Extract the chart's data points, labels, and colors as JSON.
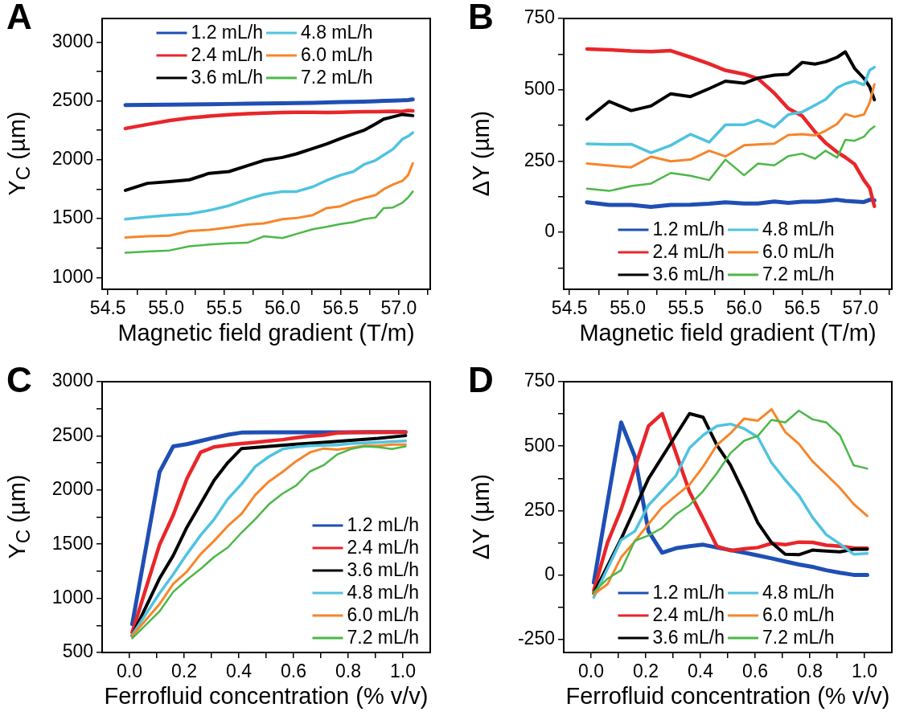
{
  "chart_data": [
    {
      "type": "line",
      "title": "A",
      "xlabel": "Magnetic field gradient (T/m)",
      "ylabel": "Y$_{C}$ (µm)",
      "legend": "top",
      "grid": false,
      "marker": "none",
      "line_style": "solid",
      "xlim": [
        54.45,
        57.27
      ],
      "xticks": [
        54.5,
        {
          "value": 54.75,
          "label": null
        },
        {
          "value": 55,
          "label": "55.0"
        },
        {
          "value": 55.25,
          "label": null
        },
        55.5,
        {
          "value": 55.75,
          "label": null
        },
        {
          "value": 56,
          "label": "56.0"
        },
        {
          "value": 56.25,
          "label": null
        },
        56.5,
        {
          "value": 56.75,
          "label": null
        },
        {
          "value": 57,
          "label": "57.0"
        },
        {
          "value": 57.25,
          "label": null
        }
      ],
      "ylim": [
        900,
        3200
      ],
      "yticks": [
        1000,
        {
          "value": 1250,
          "label": null
        },
        1500,
        {
          "value": 1750,
          "label": null
        },
        2000,
        {
          "value": 2250,
          "label": null
        },
        2500,
        {
          "value": 2750,
          "label": null
        },
        3000
      ],
      "x": [
        54.65,
        54.84,
        55.03,
        55.2,
        55.37,
        55.54,
        55.7,
        55.84,
        56.0,
        56.12,
        56.26,
        56.38,
        56.5,
        56.61,
        56.7,
        56.8,
        56.87,
        56.95,
        57.03,
        57.08,
        57.12
      ],
      "series": [
        {
          "name": "1.2 mL/h",
          "color": "#1f4fb4",
          "values": [
            2465,
            2467,
            2468,
            2470,
            2472,
            2474,
            2476,
            2478,
            2480,
            2482,
            2484,
            2487,
            2490,
            2492,
            2494,
            2497,
            2500,
            2502,
            2505,
            2508,
            2512
          ]
        },
        {
          "name": "2.4 mL/h",
          "color": "#e8262a",
          "values": [
            2266,
            2300,
            2333,
            2356,
            2370,
            2383,
            2392,
            2397,
            2401,
            2403,
            2403,
            2401,
            2403,
            2406,
            2408,
            2408,
            2410,
            2412,
            2410,
            2419,
            2415
          ]
        },
        {
          "name": "3.6 mL/h",
          "color": "#000000",
          "values": [
            1740,
            1800,
            1815,
            1830,
            1885,
            1900,
            1950,
            1995,
            2020,
            2050,
            2095,
            2135,
            2180,
            2220,
            2250,
            2305,
            2345,
            2365,
            2385,
            2380,
            2375
          ]
        },
        {
          "name": "4.8 mL/h",
          "color": "#4fc3e0",
          "values": [
            1495,
            1515,
            1530,
            1540,
            1570,
            1610,
            1665,
            1705,
            1730,
            1730,
            1770,
            1825,
            1870,
            1900,
            1960,
            1995,
            2040,
            2090,
            2175,
            2200,
            2230
          ]
        },
        {
          "name": "6.0 mL/h",
          "color": "#f7852a",
          "values": [
            1340,
            1350,
            1355,
            1395,
            1405,
            1425,
            1450,
            1460,
            1495,
            1505,
            1530,
            1590,
            1605,
            1650,
            1675,
            1700,
            1750,
            1790,
            1820,
            1870,
            1970
          ]
        },
        {
          "name": "7.2 mL/h",
          "color": "#4cb848",
          "values": [
            1210,
            1220,
            1230,
            1265,
            1280,
            1290,
            1295,
            1350,
            1335,
            1370,
            1410,
            1430,
            1455,
            1470,
            1495,
            1510,
            1590,
            1595,
            1635,
            1680,
            1730
          ]
        }
      ]
    },
    {
      "type": "line",
      "title": "B",
      "xlabel": "Magnetic field gradient (T/m)",
      "ylabel": "ΔY (µm)",
      "legend": "bottom",
      "grid": false,
      "marker": "none",
      "line_style": "solid",
      "xlim": [
        54.45,
        57.27
      ],
      "xticks": [
        54.5,
        {
          "value": 54.75,
          "label": null
        },
        {
          "value": 55,
          "label": "55.0"
        },
        {
          "value": 55.25,
          "label": null
        },
        55.5,
        {
          "value": 55.75,
          "label": null
        },
        {
          "value": 56,
          "label": "56.0"
        },
        {
          "value": 56.25,
          "label": null
        },
        56.5,
        {
          "value": 56.75,
          "label": null
        },
        {
          "value": 57,
          "label": "57.0"
        },
        {
          "value": 57.25,
          "label": null
        }
      ],
      "ylim": [
        -200,
        750
      ],
      "yticks": [
        {
          "value": -125,
          "label": null
        },
        0,
        {
          "value": 125,
          "label": null
        },
        250,
        {
          "value": 375,
          "label": null
        },
        500,
        {
          "value": 625,
          "label": null
        },
        750
      ],
      "x": [
        54.65,
        54.84,
        55.03,
        55.2,
        55.37,
        55.54,
        55.7,
        55.84,
        56.0,
        56.12,
        56.26,
        56.38,
        56.5,
        56.61,
        56.7,
        56.8,
        56.87,
        56.95,
        57.03,
        57.08,
        57.12
      ],
      "series": [
        {
          "name": "1.2 mL/h",
          "color": "#1f4fb4",
          "values": [
            105,
            96,
            96,
            89,
            96,
            97,
            100,
            105,
            101,
            101,
            108,
            103,
            107,
            107,
            110,
            114,
            110,
            108,
            106,
            114,
            112
          ]
        },
        {
          "name": "2.4 mL/h",
          "color": "#e8262a",
          "values": [
            643,
            640,
            636,
            634,
            637,
            614,
            591,
            568,
            555,
            539,
            488,
            434,
            408,
            352,
            314,
            281,
            263,
            239,
            183,
            155,
            91
          ]
        },
        {
          "name": "3.6 mL/h",
          "color": "#000000",
          "values": [
            397,
            459,
            427,
            443,
            486,
            476,
            504,
            530,
            523,
            541,
            551,
            554,
            596,
            590,
            598,
            614,
            633,
            575,
            540,
            510,
            465
          ]
        },
        {
          "name": "4.8 mL/h",
          "color": "#4fc3e0",
          "values": [
            310,
            308,
            309,
            279,
            305,
            344,
            316,
            377,
            377,
            394,
            369,
            413,
            422,
            446,
            466,
            507,
            521,
            530,
            517,
            569,
            579
          ]
        },
        {
          "name": "6.0 mL/h",
          "color": "#f7852a",
          "values": [
            241,
            234,
            228,
            265,
            249,
            255,
            286,
            266,
            305,
            308,
            311,
            341,
            344,
            340,
            356,
            380,
            415,
            405,
            413,
            455,
            519
          ]
        },
        {
          "name": "7.2 mL/h",
          "color": "#4cb848",
          "values": [
            153,
            145,
            162,
            171,
            208,
            198,
            183,
            255,
            200,
            241,
            235,
            267,
            276,
            258,
            286,
            262,
            324,
            321,
            335,
            359,
            371
          ]
        }
      ]
    },
    {
      "type": "line",
      "title": "C",
      "xlabel": "Ferrofluid concentration (% v/v)",
      "ylabel": "Y$_{C}$ (µm)",
      "legend": "bottom right",
      "grid": false,
      "marker": "none",
      "line_style": "solid",
      "xlim": [
        -0.1,
        1.1
      ],
      "xticks": [
        {
          "value": 0,
          "label": "0.0"
        },
        {
          "value": 0.1,
          "label": null
        },
        0.2,
        {
          "value": 0.3,
          "label": null
        },
        0.4,
        {
          "value": 0.5,
          "label": null
        },
        0.6,
        {
          "value": 0.7,
          "label": null
        },
        0.8,
        {
          "value": 0.9,
          "label": null
        },
        {
          "value": 1,
          "label": "1.0"
        }
      ],
      "ylim": [
        500,
        3000
      ],
      "yticks": [
        500,
        {
          "value": 750,
          "label": null
        },
        1000,
        {
          "value": 1250,
          "label": null
        },
        1500,
        {
          "value": 1750,
          "label": null
        },
        2000,
        {
          "value": 2250,
          "label": null
        },
        2500,
        {
          "value": 2750,
          "label": null
        },
        3000
      ],
      "series": [
        {
          "name": "1.2 mL/h",
          "color": "#1f4fb4",
          "x": [
            0.01,
            0.11,
            0.16,
            0.21,
            0.26,
            0.31,
            0.36,
            0.41,
            0.51,
            0.61,
            0.71,
            0.81,
            0.91,
            1.01
          ],
          "values": [
            761,
            2166,
            2403,
            2423,
            2453,
            2483,
            2510,
            2530,
            2532,
            2532,
            2532,
            2532,
            2534,
            2535
          ]
        },
        {
          "name": "2.4 mL/h",
          "color": "#e8262a",
          "x": [
            0.01,
            0.11,
            0.16,
            0.21,
            0.26,
            0.31,
            0.36,
            0.41,
            0.46,
            0.51,
            0.56,
            0.61,
            0.66,
            0.71,
            0.76,
            0.81,
            1.01
          ],
          "values": [
            686,
            1495,
            1769,
            2104,
            2348,
            2398,
            2415,
            2428,
            2440,
            2453,
            2465,
            2483,
            2497,
            2507,
            2527,
            2532,
            2535
          ]
        },
        {
          "name": "3.6 mL/h",
          "color": "#000000",
          "x": [
            0.01,
            0.11,
            0.16,
            0.21,
            0.26,
            0.31,
            0.36,
            0.41,
            0.51,
            0.61,
            0.71,
            0.81,
            0.91,
            1.01
          ],
          "values": [
            656,
            1184,
            1395,
            1656,
            1873,
            2092,
            2254,
            2383,
            2403,
            2423,
            2440,
            2458,
            2477,
            2502
          ]
        },
        {
          "name": "4.8 mL/h",
          "color": "#4fc3e0",
          "x": [
            0.01,
            0.11,
            0.16,
            0.21,
            0.26,
            0.31,
            0.36,
            0.41,
            0.46,
            0.51,
            0.56,
            0.61,
            0.66,
            0.71,
            0.76,
            0.81,
            0.86,
            0.91,
            0.96,
            1.01
          ],
          "values": [
            661,
            1047,
            1221,
            1408,
            1582,
            1731,
            1918,
            2055,
            2216,
            2308,
            2378,
            2398,
            2408,
            2413,
            2415,
            2428,
            2435,
            2440,
            2448,
            2453
          ]
        },
        {
          "name": "6.0 mL/h",
          "color": "#f7852a",
          "x": [
            0.01,
            0.11,
            0.16,
            0.21,
            0.26,
            0.31,
            0.36,
            0.41,
            0.46,
            0.51,
            0.56,
            0.61,
            0.66,
            0.71,
            0.76,
            0.81,
            0.86,
            0.91,
            0.96,
            1.01
          ],
          "values": [
            654,
            947,
            1134,
            1246,
            1408,
            1532,
            1669,
            1781,
            1955,
            2079,
            2167,
            2266,
            2348,
            2383,
            2373,
            2390,
            2408,
            2408,
            2420,
            2420
          ]
        },
        {
          "name": "7.2 mL/h",
          "color": "#4cb848",
          "x": [
            0.01,
            0.11,
            0.16,
            0.21,
            0.26,
            0.31,
            0.36,
            0.41,
            0.46,
            0.51,
            0.56,
            0.61,
            0.66,
            0.71,
            0.76,
            0.81,
            0.86,
            0.91,
            0.96,
            1.01
          ],
          "values": [
            631,
            880,
            1059,
            1171,
            1271,
            1383,
            1470,
            1607,
            1731,
            1868,
            1967,
            2042,
            2171,
            2229,
            2328,
            2378,
            2403,
            2395,
            2378,
            2403
          ]
        }
      ]
    },
    {
      "type": "line",
      "title": "D",
      "xlabel": "Ferrofluid concentration (% v/v)",
      "ylabel": "ΔY (µm)",
      "legend": "bottom",
      "grid": false,
      "marker": "none",
      "line_style": "solid",
      "xlim": [
        -0.1,
        1.1
      ],
      "xticks": [
        {
          "value": 0,
          "label": "0.0"
        },
        {
          "value": 0.1,
          "label": null
        },
        0.2,
        {
          "value": 0.3,
          "label": null
        },
        0.4,
        {
          "value": 0.5,
          "label": null
        },
        0.6,
        {
          "value": 0.7,
          "label": null
        },
        0.8,
        {
          "value": 0.9,
          "label": null
        },
        {
          "value": 1,
          "label": "1.0"
        }
      ],
      "ylim": [
        -300,
        750
      ],
      "yticks": [
        -250,
        {
          "value": -125,
          "label": null
        },
        0,
        {
          "value": 125,
          "label": null
        },
        250,
        {
          "value": 375,
          "label": null
        },
        500,
        {
          "value": 625,
          "label": null
        },
        750
      ],
      "series": [
        {
          "name": "1.2 mL/h",
          "color": "#1f4fb4",
          "x": [
            0.01,
            0.11,
            0.16,
            0.21,
            0.26,
            0.31,
            0.36,
            0.41,
            0.46,
            0.51,
            0.56,
            0.61,
            0.66,
            0.71,
            0.76,
            0.81,
            0.86,
            0.91,
            0.96,
            1.01
          ],
          "values": [
            -29,
            592,
            460,
            170,
            87,
            104,
            112,
            118,
            107,
            97,
            87,
            76,
            65,
            53,
            41,
            32,
            19,
            9,
            1,
            1
          ]
        },
        {
          "name": "2.4 mL/h",
          "color": "#e8262a",
          "x": [
            0.01,
            0.06,
            0.11,
            0.16,
            0.21,
            0.26,
            0.36,
            0.41,
            0.46,
            0.51,
            0.56,
            0.61,
            0.66,
            0.71,
            0.76,
            0.81,
            0.86,
            0.91,
            0.96,
            1.01
          ],
          "values": [
            -60,
            126,
            255,
            416,
            578,
            626,
            323,
            219,
            112,
            95,
            102,
            107,
            123,
            118,
            128,
            127,
            116,
            112,
            105,
            104
          ]
        },
        {
          "name": "3.6 mL/h",
          "color": "#000000",
          "x": [
            0.01,
            0.11,
            0.21,
            0.36,
            0.41,
            0.46,
            0.51,
            0.56,
            0.61,
            0.66,
            0.71,
            0.76,
            0.81,
            0.86,
            0.91,
            0.96,
            1.01
          ],
          "values": [
            -71,
            141,
            374,
            626,
            612,
            504,
            426,
            317,
            203,
            126,
            81,
            79,
            97,
            93,
            90,
            100,
            100
          ]
        },
        {
          "name": "4.8 mL/h",
          "color": "#4fc3e0",
          "x": [
            0.01,
            0.11,
            0.16,
            0.21,
            0.26,
            0.31,
            0.36,
            0.41,
            0.46,
            0.51,
            0.56,
            0.61,
            0.66,
            0.71,
            0.76,
            0.81,
            0.86,
            0.91,
            0.96,
            1.01
          ],
          "values": [
            -86,
            136,
            170,
            271,
            328,
            385,
            493,
            543,
            578,
            586,
            568,
            535,
            436,
            369,
            309,
            224,
            157,
            121,
            81,
            84
          ]
        },
        {
          "name": "6.0 mL/h",
          "color": "#f7852a",
          "x": [
            0.01,
            0.06,
            0.11,
            0.16,
            0.21,
            0.26,
            0.31,
            0.36,
            0.41,
            0.46,
            0.51,
            0.56,
            0.61,
            0.66,
            0.71,
            0.76,
            0.81,
            0.86,
            0.91,
            0.96,
            1.01
          ],
          "values": [
            -74,
            -35,
            69,
            131,
            198,
            263,
            307,
            351,
            421,
            504,
            550,
            607,
            599,
            643,
            555,
            509,
            441,
            390,
            338,
            276,
            229
          ]
        },
        {
          "name": "7.2 mL/h",
          "color": "#4cb848",
          "x": [
            0.01,
            0.06,
            0.11,
            0.16,
            0.21,
            0.26,
            0.31,
            0.36,
            0.41,
            0.46,
            0.51,
            0.56,
            0.61,
            0.66,
            0.71,
            0.76,
            0.81,
            0.86,
            0.91,
            0.96,
            1.01
          ],
          "values": [
            -66,
            -14,
            19,
            133,
            154,
            183,
            235,
            271,
            326,
            395,
            473,
            521,
            540,
            602,
            592,
            638,
            604,
            592,
            542,
            426,
            413
          ]
        }
      ]
    }
  ]
}
